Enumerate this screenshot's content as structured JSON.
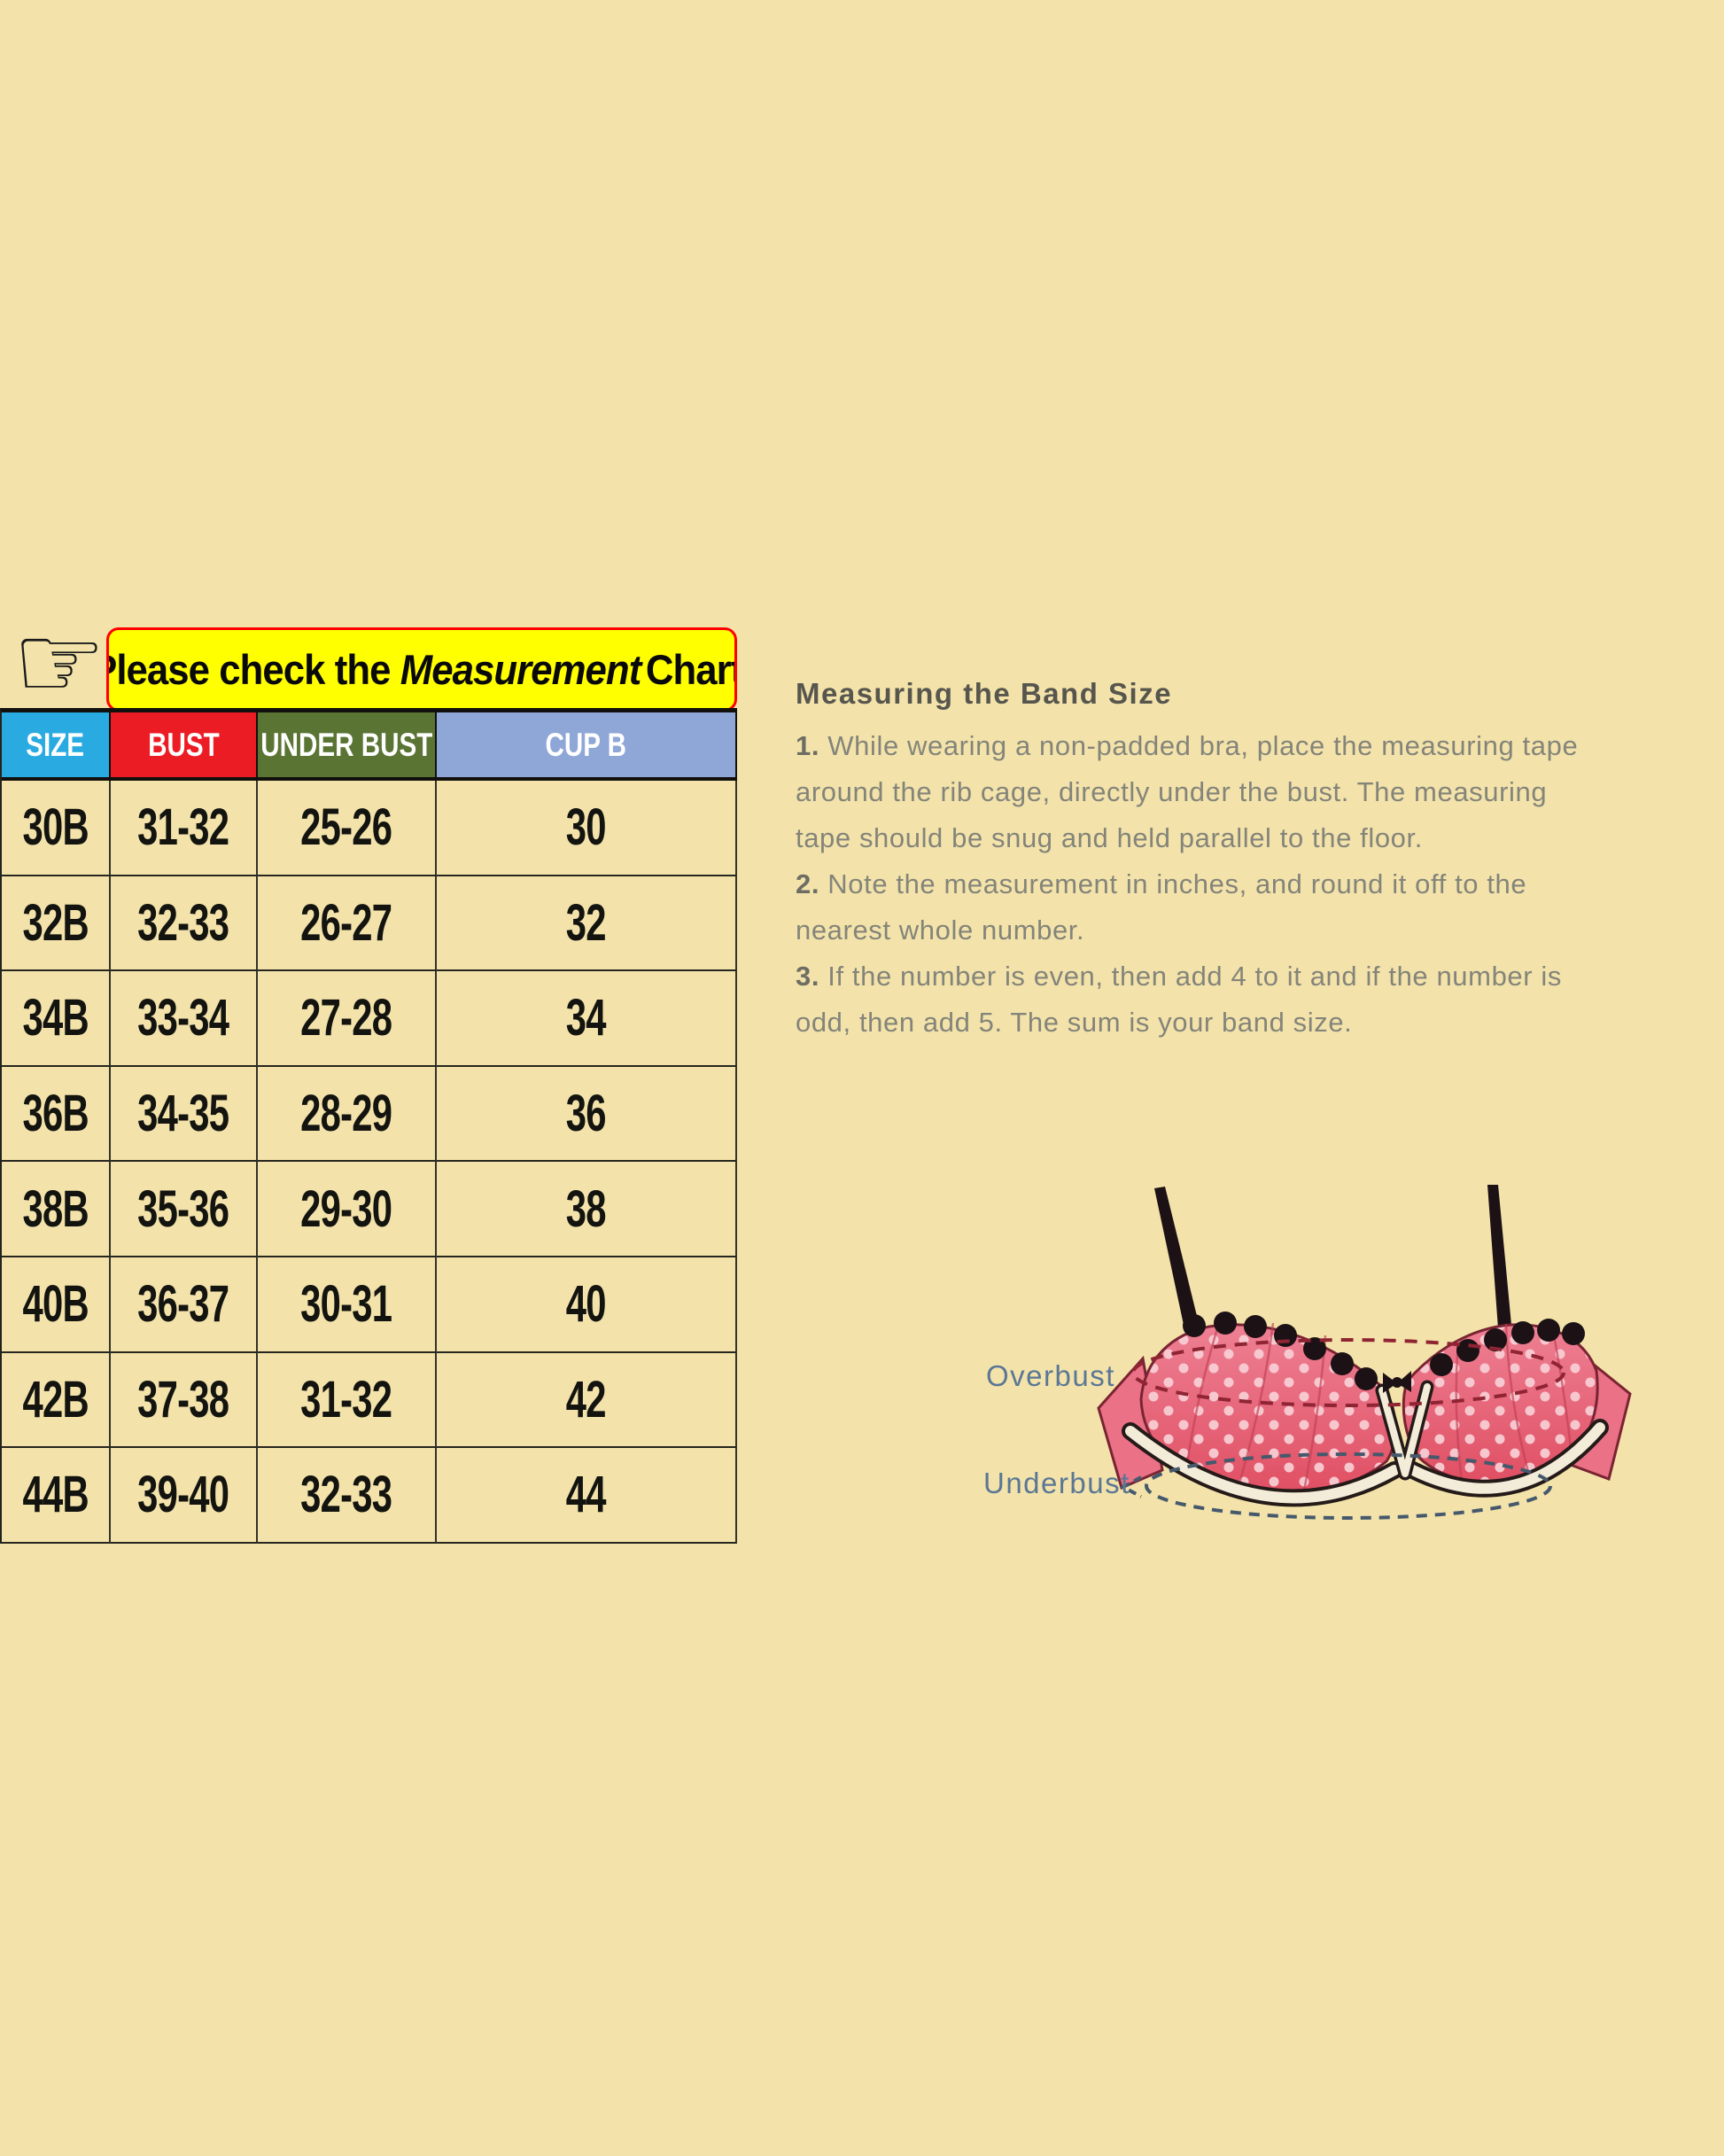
{
  "page": {
    "background": "#f3e3aa"
  },
  "hand_icon": "☞",
  "banner": {
    "prefix": "Please check the ",
    "italic": "Measurement",
    "suffix": "Chart,",
    "bg": "#ffff00",
    "border": "#ff0000"
  },
  "size_chart": {
    "columns": [
      {
        "label": "SIZE",
        "color": "#29abe2"
      },
      {
        "label": "BUST",
        "color": "#ec1c24"
      },
      {
        "label": "UNDER BUST",
        "color": "#5a7434"
      },
      {
        "label": "CUP B",
        "color": "#8fa7d7"
      }
    ],
    "rows": [
      {
        "size": "30B",
        "bust": "31-32",
        "under_bust": "25-26",
        "cup_b": "30"
      },
      {
        "size": "32B",
        "bust": "32-33",
        "under_bust": "26-27",
        "cup_b": "32"
      },
      {
        "size": "34B",
        "bust": "33-34",
        "under_bust": "27-28",
        "cup_b": "34"
      },
      {
        "size": "36B",
        "bust": "34-35",
        "under_bust": "28-29",
        "cup_b": "36"
      },
      {
        "size": "38B",
        "bust": "35-36",
        "under_bust": "29-30",
        "cup_b": "38"
      },
      {
        "size": "40B",
        "bust": "36-37",
        "under_bust": "30-31",
        "cup_b": "40"
      },
      {
        "size": "42B",
        "bust": "37-38",
        "under_bust": "31-32",
        "cup_b": "42"
      },
      {
        "size": "44B",
        "bust": "39-40",
        "under_bust": "32-33",
        "cup_b": "44"
      }
    ]
  },
  "instructions": {
    "heading": "Measuring the Band Size",
    "steps": [
      {
        "num": "1.",
        "text": "While wearing a non-padded bra, place the measuring tape\naround the rib cage, directly under the bust. The measuring\ntape should be snug and held parallel to the floor."
      },
      {
        "num": "2.",
        "text": "Note the measurement in inches, and round it off to the\nnearest whole number."
      },
      {
        "num": "3.",
        "text": "If the number is even, then add 4 to it and if the number is\nodd, then add 5. The sum is your band size."
      }
    ]
  },
  "diagram": {
    "overbust_label": "Overbust",
    "underbust_label": "Underbust",
    "colors": {
      "cup_pink": "#e8607a",
      "cup_light": "#ee8093",
      "cup_dark": "#e04f63",
      "outline": "#7a2433",
      "band_cream": "#f3ecd8",
      "strap_black": "#1c1216",
      "overbust_dash": "#8f2433",
      "underbust_dash": "#46596c",
      "label_blue": "#5b7795"
    }
  }
}
